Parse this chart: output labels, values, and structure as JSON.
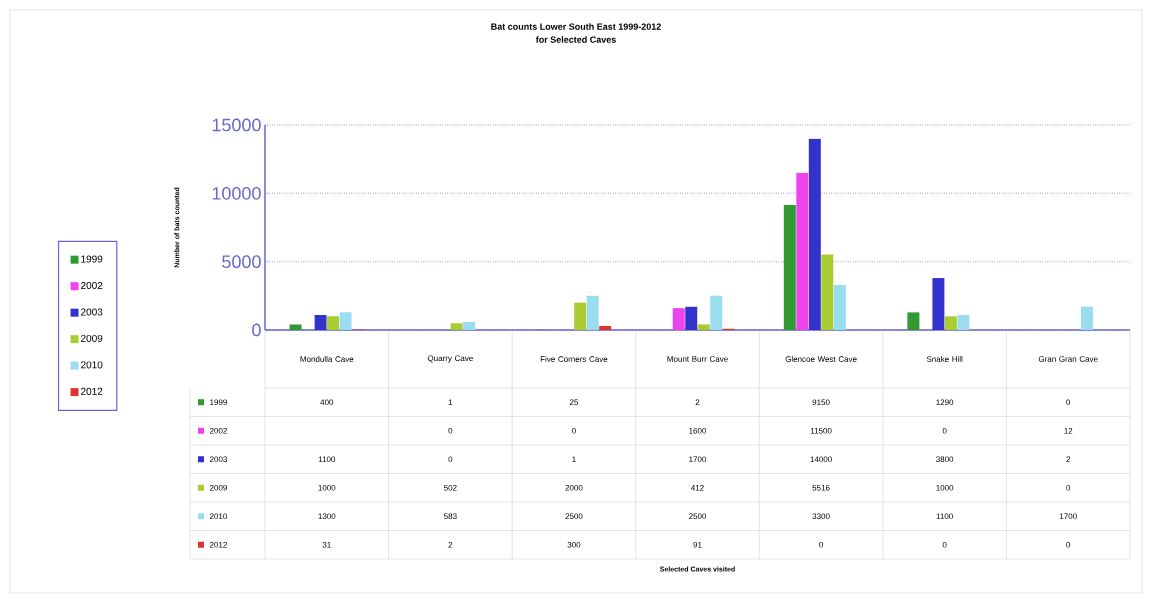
{
  "chart_data": {
    "type": "bar",
    "title": "Bat counts Lower South East 1999-2012",
    "subtitle": "for Selected Caves",
    "annotations": [
      "Selected Caves visited"
    ],
    "ylabel": "Number of bats counted",
    "categories": [
      "Mondulla Cave",
      "Quarry Cave",
      "Five Corners Cave",
      "Mount Burr Cave",
      "Glencoe West Cave",
      "Snake Hill",
      "Gran Gran Cave"
    ],
    "series": [
      {
        "name": "1999",
        "color": "#339933",
        "values": [
          400,
          1,
          25,
          2,
          9150,
          1290,
          0
        ]
      },
      {
        "name": "2002",
        "color": "#ee44ee",
        "values": [
          null,
          0,
          0,
          1600,
          11500,
          0,
          12
        ]
      },
      {
        "name": "2003",
        "color": "#3333cc",
        "values": [
          1100,
          0,
          1,
          1700,
          14000,
          3800,
          2
        ]
      },
      {
        "name": "2009",
        "color": "#aacc33",
        "values": [
          1000,
          502,
          2000,
          412,
          5516,
          1000,
          0
        ]
      },
      {
        "name": "2010",
        "color": "#99ddee",
        "values": [
          1300,
          583,
          2500,
          2500,
          3300,
          1100,
          1700
        ]
      },
      {
        "name": "2012",
        "color": "#dd3333",
        "values": [
          31,
          2,
          300,
          91,
          0,
          0,
          0
        ]
      }
    ],
    "ylim": [
      0,
      15000
    ],
    "yticks": [
      0,
      5000,
      10000,
      15000
    ],
    "grid": "y",
    "legend": "left",
    "data_labels": true
  }
}
